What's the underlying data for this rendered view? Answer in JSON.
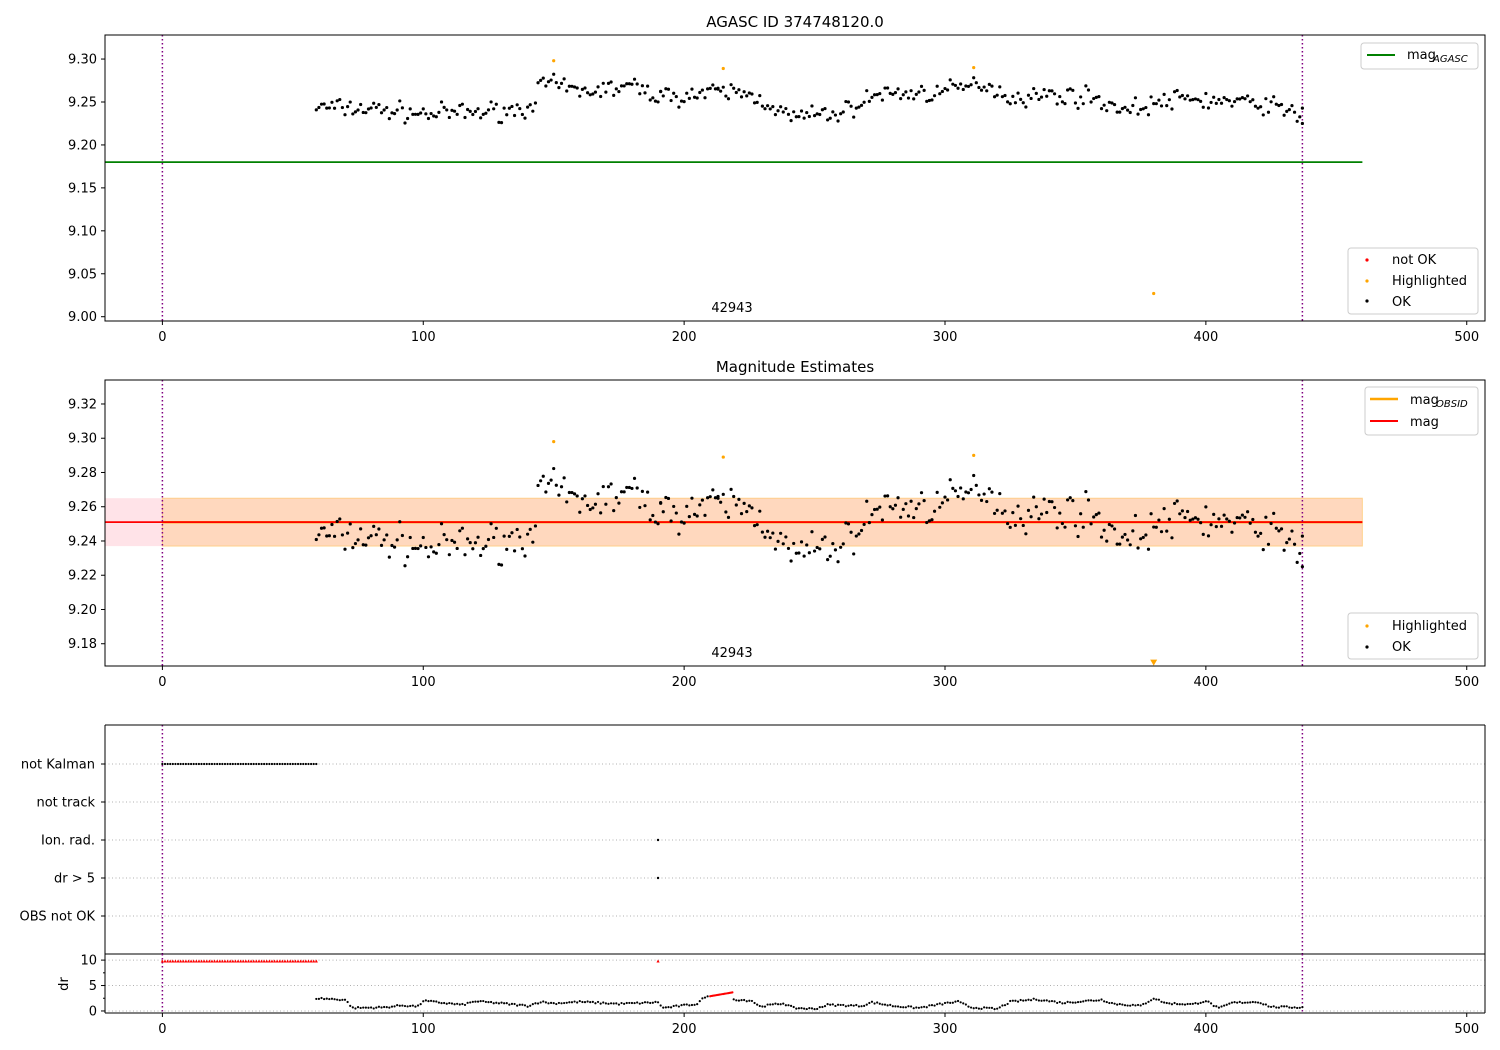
{
  "chart_data": [
    {
      "type": "scatter",
      "title": "AGASC ID 374748120.0",
      "xlim": [
        -22,
        507
      ],
      "ylim": [
        8.995,
        9.328
      ],
      "xticks": [
        0,
        100,
        200,
        300,
        400,
        500
      ],
      "yticks": [
        9.0,
        9.05,
        9.1,
        9.15,
        9.2,
        9.25,
        9.3
      ],
      "ytick_decimals": 2,
      "vlines": [
        0,
        437
      ],
      "annotation": {
        "text": "42943",
        "x": 218,
        "y": 9.015
      },
      "reference_line": {
        "label": "mag",
        "label_sub": "AGASC",
        "value": 9.18,
        "x_range": [
          0,
          460
        ],
        "color": "#008000"
      },
      "legend_upper": {
        "placement": "upper right",
        "items": [
          {
            "label": "mag",
            "sub": "AGASC",
            "kind": "line",
            "color": "#008000"
          }
        ]
      },
      "legend_lower": {
        "placement": "lower right",
        "items": [
          {
            "label": "not OK",
            "kind": "dot",
            "color": "#ff0000"
          },
          {
            "label": "Highlighted",
            "kind": "dot",
            "color": "#ffa500"
          },
          {
            "label": "OK",
            "kind": "dot",
            "color": "#000000"
          }
        ]
      },
      "series": [
        {
          "name": "OK",
          "color": "#000000",
          "x_range": [
            59,
            437
          ],
          "noise_seed": 7,
          "points_note": "black dots",
          "keypoints": [
            [
              59,
              9.244
            ],
            [
              80,
              9.242
            ],
            [
              100,
              9.236
            ],
            [
              120,
              9.238
            ],
            [
              140,
              9.242
            ],
            [
              146,
              9.272
            ],
            [
              160,
              9.262
            ],
            [
              180,
              9.268
            ],
            [
              192,
              9.256
            ],
            [
              210,
              9.26
            ],
            [
              220,
              9.262
            ],
            [
              232,
              9.25
            ],
            [
              240,
              9.232
            ],
            [
              260,
              9.237
            ],
            [
              275,
              9.26
            ],
            [
              290,
              9.26
            ],
            [
              300,
              9.262
            ],
            [
              315,
              9.272
            ],
            [
              325,
              9.255
            ],
            [
              340,
              9.258
            ],
            [
              355,
              9.256
            ],
            [
              370,
              9.24
            ],
            [
              380,
              9.248
            ],
            [
              392,
              9.254
            ],
            [
              410,
              9.25
            ],
            [
              425,
              9.247
            ],
            [
              432,
              9.238
            ],
            [
              437,
              9.235
            ]
          ],
          "amplitude": 0.012,
          "special_points": [
            [
              437,
              9.225
            ],
            [
              191,
              9.262
            ],
            [
              213,
              9.266
            ]
          ]
        },
        {
          "name": "Highlighted",
          "color": "#ffa500",
          "points": [
            [
              150,
              9.298
            ],
            [
              215,
              9.289
            ],
            [
              311,
              9.29
            ],
            [
              380,
              9.027
            ]
          ]
        }
      ]
    },
    {
      "type": "scatter",
      "title": "Magnitude Estimates",
      "xlim": [
        -22,
        507
      ],
      "ylim": [
        9.167,
        9.334
      ],
      "xticks": [
        0,
        100,
        200,
        300,
        400,
        500
      ],
      "yticks": [
        9.18,
        9.2,
        9.22,
        9.24,
        9.26,
        9.28,
        9.3,
        9.32
      ],
      "ytick_decimals": 2,
      "vlines": [
        0,
        437
      ],
      "annotation": {
        "text": "42943",
        "x": 218,
        "y": 9.174
      },
      "mag_line": {
        "label": "mag",
        "value": 9.251,
        "band": [
          9.237,
          9.265
        ],
        "x_range": [
          -22,
          460
        ],
        "color": "#ff0000"
      },
      "obsid_band": {
        "label": "mag",
        "sub": "OBSID",
        "value": 9.251,
        "band": [
          9.237,
          9.265
        ],
        "x_range": [
          0,
          460
        ],
        "color": "#ffa500"
      },
      "legend_upper": {
        "placement": "upper right",
        "items": [
          {
            "label": "mag",
            "sub": "OBSID",
            "kind": "line",
            "color": "#ffa500"
          },
          {
            "label": "mag",
            "kind": "line",
            "color": "#ff0000"
          }
        ]
      },
      "legend_lower": {
        "placement": "lower right",
        "items": [
          {
            "label": "Highlighted",
            "kind": "dot",
            "color": "#ffa500"
          },
          {
            "label": "OK",
            "kind": "dot",
            "color": "#000000"
          }
        ]
      },
      "series": [
        {
          "name": "OK",
          "color": "#000000",
          "same_as_panel": 0
        },
        {
          "name": "Highlighted",
          "color": "#ffa500",
          "points": [
            [
              150,
              9.298
            ],
            [
              215,
              9.289
            ],
            [
              311,
              9.29
            ]
          ],
          "offscale_marker": {
            "x": 380,
            "y": 9.169
          }
        }
      ]
    },
    {
      "type": "scatter",
      "title": "",
      "xlim": [
        -22,
        507
      ],
      "categories": [
        "not Kalman",
        "not track",
        "Ion. rad.",
        "dr > 5",
        "OBS not OK"
      ],
      "vlines": [
        0,
        437
      ],
      "flag_points": [
        {
          "category": "not Kalman",
          "x_range": [
            0,
            59
          ],
          "color": "#000000"
        },
        {
          "category": "Ion. rad.",
          "x": 190,
          "color": "#000000"
        },
        {
          "category": "dr > 5",
          "x": 190,
          "color": "#000000"
        }
      ]
    },
    {
      "type": "scatter",
      "title": "",
      "xlim": [
        -22,
        507
      ],
      "ylim": [
        -0.4,
        11.2
      ],
      "xticks": [
        0,
        100,
        200,
        300,
        400,
        500
      ],
      "yticks": [
        0,
        5,
        10
      ],
      "ylabel": "dr",
      "vlines": [
        0,
        437
      ],
      "capped_series": {
        "color": "#ff0000",
        "x_range": [
          0,
          59
        ],
        "value": 9.8,
        "extra_x": [
          190
        ]
      },
      "red_segment": {
        "color": "#ff0000",
        "x_range": [
          210,
          218
        ],
        "y_range": [
          2.9,
          3.6
        ]
      },
      "ok_keypoints": [
        [
          59,
          2.5
        ],
        [
          70,
          2.2
        ],
        [
          73,
          0.6
        ],
        [
          85,
          0.7
        ],
        [
          92,
          1.1
        ],
        [
          98,
          0.9
        ],
        [
          100,
          2.0
        ],
        [
          115,
          1.2
        ],
        [
          120,
          1.9
        ],
        [
          130,
          1.5
        ],
        [
          140,
          1.0
        ],
        [
          145,
          1.8
        ],
        [
          150,
          1.5
        ],
        [
          160,
          1.8
        ],
        [
          175,
          1.4
        ],
        [
          190,
          1.7
        ],
        [
          192,
          0.6
        ],
        [
          205,
          1.4
        ],
        [
          208,
          2.8
        ],
        [
          221,
          2.2
        ],
        [
          226,
          2.0
        ],
        [
          229,
          0.9
        ],
        [
          238,
          1.5
        ],
        [
          242,
          0.6
        ],
        [
          250,
          0.4
        ],
        [
          255,
          1.2
        ],
        [
          268,
          1.0
        ],
        [
          272,
          1.7
        ],
        [
          280,
          1.0
        ],
        [
          290,
          0.6
        ],
        [
          300,
          1.5
        ],
        [
          305,
          1.8
        ],
        [
          310,
          0.7
        ],
        [
          320,
          0.4
        ],
        [
          325,
          1.8
        ],
        [
          335,
          2.3
        ],
        [
          345,
          1.6
        ],
        [
          360,
          2.2
        ],
        [
          365,
          1.4
        ],
        [
          375,
          1.0
        ],
        [
          380,
          2.5
        ],
        [
          385,
          1.5
        ],
        [
          395,
          1.3
        ],
        [
          400,
          2.0
        ],
        [
          405,
          0.5
        ],
        [
          410,
          1.6
        ],
        [
          420,
          1.8
        ],
        [
          425,
          0.8
        ],
        [
          437,
          0.7
        ]
      ]
    }
  ]
}
